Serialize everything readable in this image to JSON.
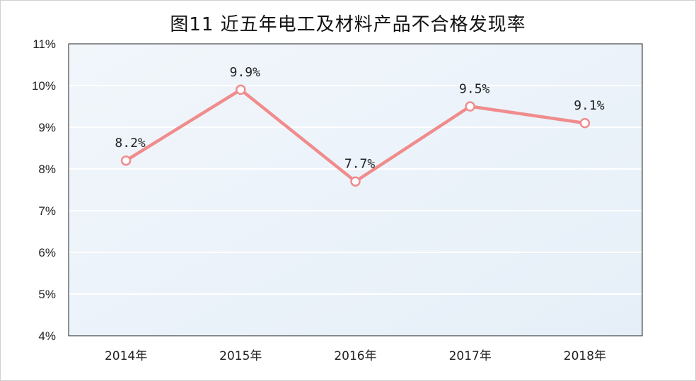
{
  "chart_data": {
    "type": "line",
    "title": "图11  近五年电工及材料产品不合格发现率",
    "categories": [
      "2014年",
      "2015年",
      "2016年",
      "2017年",
      "2018年"
    ],
    "series": [
      {
        "values": [
          8.2,
          9.9,
          7.7,
          9.5,
          9.1
        ],
        "labels": [
          "8.2%",
          "9.9%",
          "7.7%",
          "9.5%",
          "9.1%"
        ]
      }
    ],
    "y_ticks": [
      "4%",
      "5%",
      "6%",
      "7%",
      "8%",
      "9%",
      "10%",
      "11%"
    ],
    "ylim": [
      4,
      11
    ],
    "grid": true,
    "legend": "none",
    "colors": {
      "line": "#f08c8c",
      "plot_bg": "#eef4fa",
      "grid": "#ffffff"
    }
  }
}
